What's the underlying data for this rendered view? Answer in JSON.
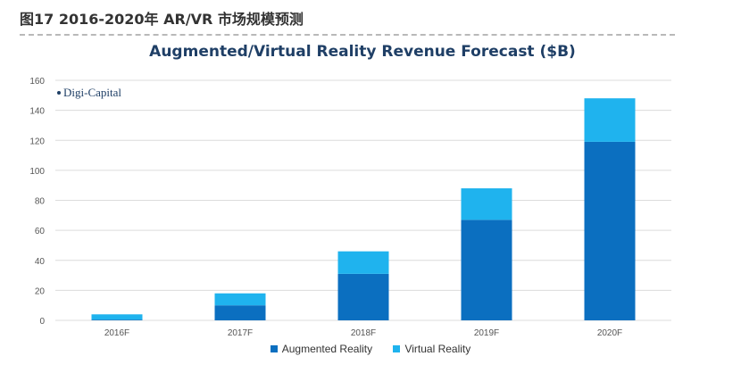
{
  "caption": "图17 2016-2020年 AR/VR 市场规模预测",
  "watermark": "Digi-Capital",
  "colors": {
    "ar": "#0b6fc0",
    "vr": "#1fb3ee",
    "grid": "#dcdcdc",
    "tick_text": "#555555"
  },
  "chart_data": {
    "type": "bar",
    "stacked": true,
    "title": "Augmented/Virtual Reality Revenue Forecast ($B)",
    "xlabel": "",
    "ylabel": "",
    "categories": [
      "2016F",
      "2017F",
      "2018F",
      "2019F",
      "2020F"
    ],
    "series": [
      {
        "name": "Augmented Reality",
        "values": [
          0.5,
          10,
          31,
          67,
          119
        ]
      },
      {
        "name": "Virtual Reality",
        "values": [
          3.5,
          8,
          15,
          21,
          29
        ]
      }
    ],
    "ylim": [
      0,
      160
    ],
    "yticks": [
      0,
      20,
      40,
      60,
      80,
      100,
      120,
      140,
      160
    ],
    "grid": true,
    "legend": "bottom"
  }
}
